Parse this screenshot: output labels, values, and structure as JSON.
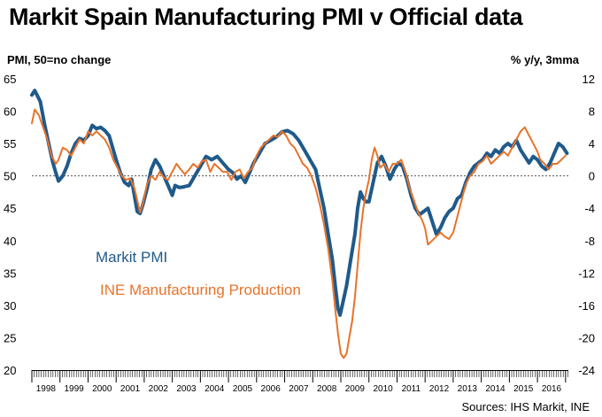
{
  "title": "Markit Spain Manufacturing PMI v Official data",
  "left_axis_label": "PMI, 50=no change",
  "right_axis_label": "% y/y, 3mma",
  "source": "Sources: IHS Markit, INE",
  "chart_data": {
    "type": "line",
    "left_axis": {
      "min": 20,
      "max": 65,
      "ticks": [
        65,
        60,
        55,
        50,
        45,
        40,
        35,
        30,
        25,
        20
      ]
    },
    "right_axis": {
      "min": -24,
      "max": 12,
      "ticks": [
        12,
        8,
        4,
        0,
        -4,
        -8,
        -12,
        -16,
        -20,
        -24
      ]
    },
    "reference_line": {
      "axis": "left",
      "value": 50,
      "style": "dotted"
    },
    "years": [
      "1998",
      "1999",
      "2000",
      "2001",
      "2002",
      "2003",
      "2004",
      "2005",
      "2006",
      "2007",
      "2008",
      "2009",
      "2010",
      "2011",
      "2012",
      "2013",
      "2014",
      "2015",
      "2016"
    ],
    "x_range": [
      1998.0,
      2017.1
    ],
    "series": [
      {
        "name": "Markit PMI",
        "axis": "left",
        "color": "#1f5a8a",
        "points": [
          [
            1998.0,
            62.5
          ],
          [
            1998.1,
            63.2
          ],
          [
            1998.3,
            61.5
          ],
          [
            1998.45,
            58
          ],
          [
            1998.6,
            55
          ],
          [
            1998.75,
            52
          ],
          [
            1998.85,
            50.5
          ],
          [
            1998.95,
            49.2
          ],
          [
            1999.1,
            50
          ],
          [
            1999.25,
            51.5
          ],
          [
            1999.4,
            53.5
          ],
          [
            1999.55,
            55
          ],
          [
            1999.7,
            55.8
          ],
          [
            1999.85,
            55.5
          ],
          [
            2000.0,
            56.2
          ],
          [
            2000.15,
            57.8
          ],
          [
            2000.3,
            57.3
          ],
          [
            2000.45,
            57.5
          ],
          [
            2000.6,
            57
          ],
          [
            2000.75,
            56.2
          ],
          [
            2000.9,
            54
          ],
          [
            2001.0,
            52.5
          ],
          [
            2001.15,
            50.5
          ],
          [
            2001.3,
            49
          ],
          [
            2001.45,
            48.5
          ],
          [
            2001.55,
            49.5
          ],
          [
            2001.65,
            47
          ],
          [
            2001.75,
            44.5
          ],
          [
            2001.85,
            44.2
          ],
          [
            2001.95,
            45.5
          ],
          [
            2002.1,
            48
          ],
          [
            2002.25,
            51
          ],
          [
            2002.4,
            52.5
          ],
          [
            2002.55,
            51.5
          ],
          [
            2002.7,
            50
          ],
          [
            2002.85,
            48.5
          ],
          [
            2003.0,
            47
          ],
          [
            2003.1,
            48.5
          ],
          [
            2003.25,
            48.2
          ],
          [
            2003.4,
            48.3
          ],
          [
            2003.6,
            48.5
          ],
          [
            2003.8,
            50
          ],
          [
            2004.0,
            51.5
          ],
          [
            2004.2,
            53
          ],
          [
            2004.4,
            52.5
          ],
          [
            2004.6,
            53
          ],
          [
            2004.8,
            52
          ],
          [
            2005.0,
            51
          ],
          [
            2005.15,
            50.5
          ],
          [
            2005.3,
            49.5
          ],
          [
            2005.45,
            50
          ],
          [
            2005.6,
            49
          ],
          [
            2005.75,
            50.5
          ],
          [
            2005.9,
            52
          ],
          [
            2006.1,
            53.5
          ],
          [
            2006.3,
            55
          ],
          [
            2006.5,
            55.5
          ],
          [
            2006.7,
            56
          ],
          [
            2006.9,
            56.8
          ],
          [
            2007.1,
            57
          ],
          [
            2007.3,
            56.5
          ],
          [
            2007.5,
            55.5
          ],
          [
            2007.7,
            54
          ],
          [
            2007.9,
            52.5
          ],
          [
            2008.1,
            51
          ],
          [
            2008.25,
            48
          ],
          [
            2008.4,
            45
          ],
          [
            2008.55,
            41
          ],
          [
            2008.7,
            37
          ],
          [
            2008.8,
            33
          ],
          [
            2008.9,
            29.5
          ],
          [
            2008.97,
            28.5
          ],
          [
            2009.05,
            30
          ],
          [
            2009.2,
            33
          ],
          [
            2009.35,
            37
          ],
          [
            2009.5,
            41
          ],
          [
            2009.6,
            45
          ],
          [
            2009.7,
            47.5
          ],
          [
            2009.8,
            46.5
          ],
          [
            2009.9,
            46
          ],
          [
            2010.0,
            46
          ],
          [
            2010.15,
            49
          ],
          [
            2010.3,
            52
          ],
          [
            2010.45,
            53
          ],
          [
            2010.6,
            51.5
          ],
          [
            2010.75,
            49.5
          ],
          [
            2010.9,
            51
          ],
          [
            2011.05,
            52
          ],
          [
            2011.2,
            51.5
          ],
          [
            2011.35,
            49.5
          ],
          [
            2011.5,
            47
          ],
          [
            2011.65,
            45
          ],
          [
            2011.8,
            44
          ],
          [
            2011.95,
            44.5
          ],
          [
            2012.1,
            45
          ],
          [
            2012.25,
            43
          ],
          [
            2012.4,
            41
          ],
          [
            2012.55,
            42
          ],
          [
            2012.7,
            43.5
          ],
          [
            2012.85,
            44.5
          ],
          [
            2013.0,
            45
          ],
          [
            2013.15,
            46.5
          ],
          [
            2013.3,
            47
          ],
          [
            2013.45,
            49
          ],
          [
            2013.6,
            50.5
          ],
          [
            2013.75,
            51.5
          ],
          [
            2013.9,
            52
          ],
          [
            2014.05,
            52.5
          ],
          [
            2014.2,
            53.5
          ],
          [
            2014.35,
            53
          ],
          [
            2014.5,
            54
          ],
          [
            2014.65,
            53.5
          ],
          [
            2014.8,
            54.5
          ],
          [
            2014.95,
            55
          ],
          [
            2015.1,
            54.5
          ],
          [
            2015.25,
            55.5
          ],
          [
            2015.4,
            54
          ],
          [
            2015.55,
            53
          ],
          [
            2015.7,
            52
          ],
          [
            2015.85,
            53
          ],
          [
            2016.0,
            52.5
          ],
          [
            2016.15,
            51.5
          ],
          [
            2016.3,
            51
          ],
          [
            2016.45,
            52
          ],
          [
            2016.6,
            53.5
          ],
          [
            2016.75,
            55
          ],
          [
            2016.9,
            54.5
          ],
          [
            2017.05,
            53.5
          ]
        ]
      },
      {
        "name": "INE Manufacturing Production",
        "axis": "right",
        "color": "#e8732a",
        "points": [
          [
            1998.0,
            6.5
          ],
          [
            1998.1,
            8.2
          ],
          [
            1998.25,
            7.5
          ],
          [
            1998.4,
            6
          ],
          [
            1998.55,
            4.5
          ],
          [
            1998.7,
            2.5
          ],
          [
            1998.85,
            1.5
          ],
          [
            1998.95,
            2
          ],
          [
            1999.1,
            3.5
          ],
          [
            1999.25,
            3.2
          ],
          [
            1999.4,
            2.5
          ],
          [
            1999.55,
            3.5
          ],
          [
            1999.7,
            4.5
          ],
          [
            1999.85,
            4
          ],
          [
            2000.0,
            5.5
          ],
          [
            2000.15,
            5
          ],
          [
            2000.3,
            5.5
          ],
          [
            2000.45,
            5
          ],
          [
            2000.6,
            4.5
          ],
          [
            2000.75,
            3.5
          ],
          [
            2000.9,
            2
          ],
          [
            2001.05,
            1
          ],
          [
            2001.2,
            0
          ],
          [
            2001.35,
            -0.5
          ],
          [
            2001.5,
            -0.3
          ],
          [
            2001.65,
            -1.5
          ],
          [
            2001.75,
            -3
          ],
          [
            2001.85,
            -4.5
          ],
          [
            2001.95,
            -3.5
          ],
          [
            2002.1,
            -1
          ],
          [
            2002.25,
            0
          ],
          [
            2002.4,
            -0.5
          ],
          [
            2002.55,
            0.5
          ],
          [
            2002.7,
            -0.2
          ],
          [
            2002.85,
            -0.5
          ],
          [
            2003.0,
            0.5
          ],
          [
            2003.15,
            1.5
          ],
          [
            2003.3,
            0.8
          ],
          [
            2003.45,
            0.2
          ],
          [
            2003.6,
            0.8
          ],
          [
            2003.75,
            1.5
          ],
          [
            2003.9,
            1
          ],
          [
            2004.05,
            1.8
          ],
          [
            2004.2,
            2
          ],
          [
            2004.35,
            0.5
          ],
          [
            2004.5,
            1.5
          ],
          [
            2004.65,
            1
          ],
          [
            2004.8,
            0.5
          ],
          [
            2004.95,
            0.5
          ],
          [
            2005.1,
            -0.5
          ],
          [
            2005.25,
            0.5
          ],
          [
            2005.4,
            0.8
          ],
          [
            2005.55,
            -0.3
          ],
          [
            2005.7,
            0.5
          ],
          [
            2005.85,
            1
          ],
          [
            2006.0,
            2.5
          ],
          [
            2006.15,
            3.5
          ],
          [
            2006.3,
            4
          ],
          [
            2006.45,
            4.5
          ],
          [
            2006.6,
            5
          ],
          [
            2006.75,
            4.8
          ],
          [
            2006.9,
            5.5
          ],
          [
            2007.05,
            5
          ],
          [
            2007.2,
            4
          ],
          [
            2007.35,
            3.5
          ],
          [
            2007.5,
            2.5
          ],
          [
            2007.65,
            1.5
          ],
          [
            2007.8,
            1
          ],
          [
            2007.95,
            0
          ],
          [
            2008.1,
            -1.5
          ],
          [
            2008.25,
            -3.5
          ],
          [
            2008.4,
            -6
          ],
          [
            2008.55,
            -9
          ],
          [
            2008.7,
            -13
          ],
          [
            2008.8,
            -16.5
          ],
          [
            2008.9,
            -19.5
          ],
          [
            2009.0,
            -22
          ],
          [
            2009.1,
            -22.5
          ],
          [
            2009.2,
            -22
          ],
          [
            2009.3,
            -20
          ],
          [
            2009.4,
            -18
          ],
          [
            2009.5,
            -15
          ],
          [
            2009.6,
            -11
          ],
          [
            2009.7,
            -7
          ],
          [
            2009.8,
            -4
          ],
          [
            2009.9,
            -2
          ],
          [
            2010.0,
            -0.5
          ],
          [
            2010.1,
            2
          ],
          [
            2010.2,
            3.5
          ],
          [
            2010.3,
            2.5
          ],
          [
            2010.4,
            1
          ],
          [
            2010.55,
            1.5
          ],
          [
            2010.7,
            0.5
          ],
          [
            2010.85,
            1.5
          ],
          [
            2011.0,
            1.5
          ],
          [
            2011.15,
            2
          ],
          [
            2011.3,
            0.5
          ],
          [
            2011.45,
            -1.5
          ],
          [
            2011.6,
            -3
          ],
          [
            2011.75,
            -4.5
          ],
          [
            2011.9,
            -5.5
          ],
          [
            2012.0,
            -6.5
          ],
          [
            2012.1,
            -8.5
          ],
          [
            2012.25,
            -8
          ],
          [
            2012.4,
            -7.5
          ],
          [
            2012.55,
            -7
          ],
          [
            2012.7,
            -7.5
          ],
          [
            2012.85,
            -7.8
          ],
          [
            2013.0,
            -7
          ],
          [
            2013.15,
            -5
          ],
          [
            2013.3,
            -3
          ],
          [
            2013.45,
            -1
          ],
          [
            2013.6,
            0
          ],
          [
            2013.75,
            0.5
          ],
          [
            2013.9,
            1.5
          ],
          [
            2014.05,
            1.8
          ],
          [
            2014.2,
            2.5
          ],
          [
            2014.35,
            1.5
          ],
          [
            2014.5,
            2
          ],
          [
            2014.65,
            2.5
          ],
          [
            2014.8,
            3
          ],
          [
            2014.95,
            2.5
          ],
          [
            2015.1,
            3.5
          ],
          [
            2015.25,
            4.5
          ],
          [
            2015.4,
            5.5
          ],
          [
            2015.55,
            6
          ],
          [
            2015.7,
            5
          ],
          [
            2015.85,
            4
          ],
          [
            2016.0,
            3
          ],
          [
            2016.1,
            2
          ],
          [
            2016.25,
            1.5
          ],
          [
            2016.4,
            0.8
          ],
          [
            2016.55,
            1.5
          ],
          [
            2016.7,
            1.5
          ],
          [
            2016.85,
            2
          ],
          [
            2017.0,
            2.5
          ]
        ]
      }
    ]
  }
}
